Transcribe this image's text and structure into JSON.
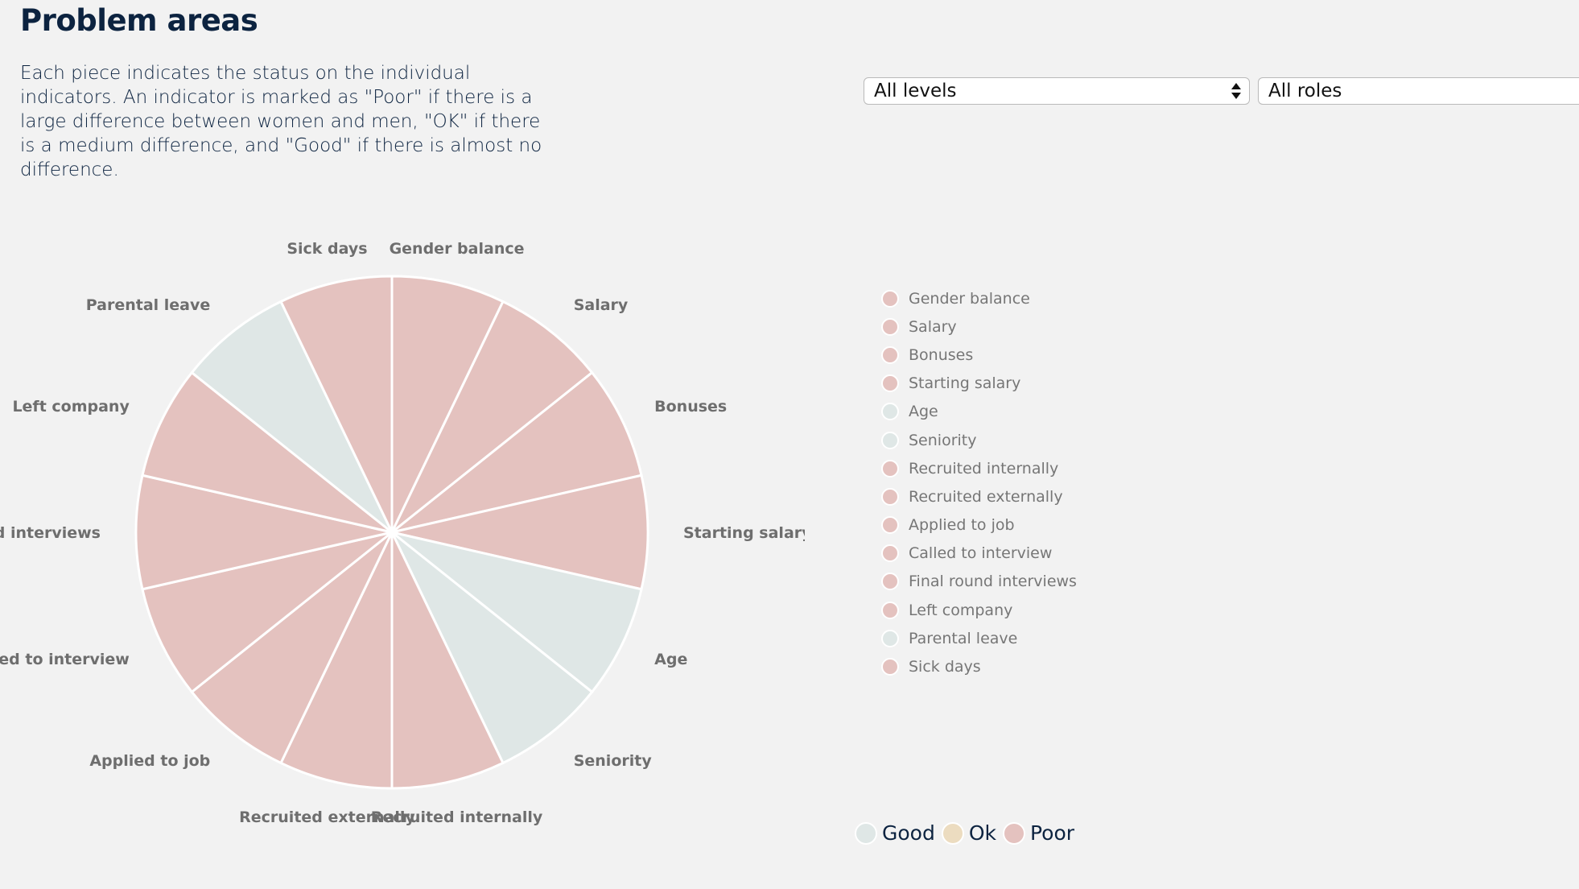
{
  "header": {
    "title": "Problem areas",
    "description": "Each piece indicates the status on the individual indicators. An indicator is marked as \"Poor\" if there is a large difference between women and men, \"OK\" if there is a medium difference, and \"Good\" if there is almost no difference."
  },
  "filters": {
    "levels": {
      "selected": "All levels"
    },
    "roles": {
      "selected": "All roles"
    }
  },
  "colors": {
    "good": "#dfe7e6",
    "ok": "#ecdcc0",
    "poor": "#e4c2bf",
    "divider": "#ffffff"
  },
  "status_legend": [
    {
      "key": "good",
      "label": "Good"
    },
    {
      "key": "ok",
      "label": "Ok"
    },
    {
      "key": "poor",
      "label": "Poor"
    }
  ],
  "chart_data": {
    "type": "pie",
    "title": "",
    "categories": [
      "Gender balance",
      "Salary",
      "Bonuses",
      "Starting salary",
      "Age",
      "Seniority",
      "Recruited internally",
      "Recruited externally",
      "Applied to job",
      "Called to interview",
      "Final round interviews",
      "Left company",
      "Parental leave",
      "Sick days"
    ],
    "values": [
      1,
      1,
      1,
      1,
      1,
      1,
      1,
      1,
      1,
      1,
      1,
      1,
      1,
      1
    ],
    "status": [
      "poor",
      "poor",
      "poor",
      "poor",
      "good",
      "good",
      "poor",
      "poor",
      "poor",
      "poor",
      "poor",
      "poor",
      "good",
      "poor"
    ],
    "legend": "right",
    "grid": false
  }
}
